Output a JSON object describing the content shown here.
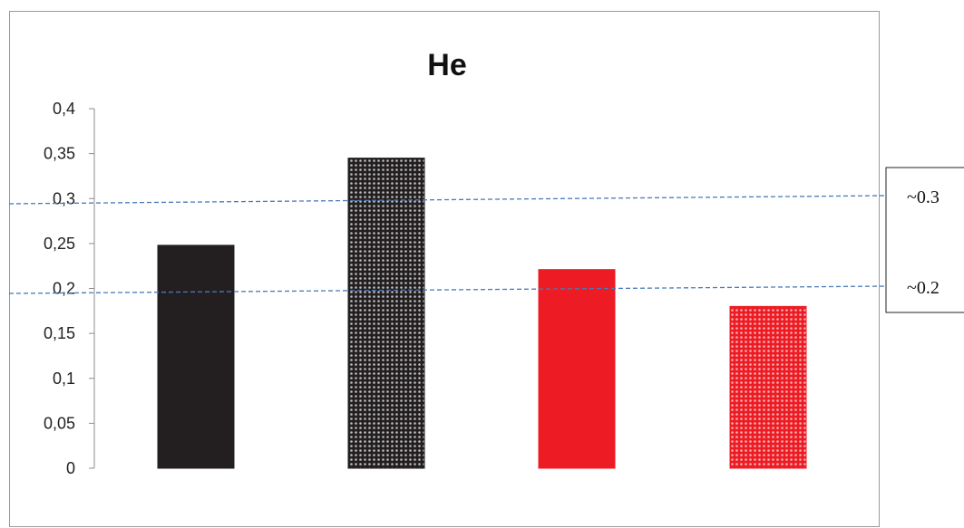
{
  "chart_data": {
    "type": "bar",
    "title": "He",
    "xlabel": "",
    "ylabel": "",
    "ylim": [
      0,
      0.4
    ],
    "yticks": [
      "0",
      "0,05",
      "0,1",
      "0,15",
      "0,2",
      "0,25",
      "0,3",
      "0,35",
      "0,4"
    ],
    "tick_values": [
      0,
      0.05,
      0.1,
      0.15,
      0.2,
      0.25,
      0.3,
      0.35,
      0.4
    ],
    "categories": [
      "",
      "",
      "",
      ""
    ],
    "values": [
      0.248,
      0.345,
      0.221,
      0.18
    ],
    "bar_colors": [
      "#231f20",
      "#231f20",
      "#ed1c24",
      "#ed1c24"
    ],
    "bar_patterns": [
      "solid",
      "dotted",
      "solid",
      "dotted"
    ],
    "grid": false,
    "reference_lines": [
      {
        "label": "~0.3",
        "value": 0.3,
        "color": "#4a7ab8"
      },
      {
        "label": "~0.2",
        "value": 0.2,
        "color": "#4a7ab8"
      }
    ]
  }
}
